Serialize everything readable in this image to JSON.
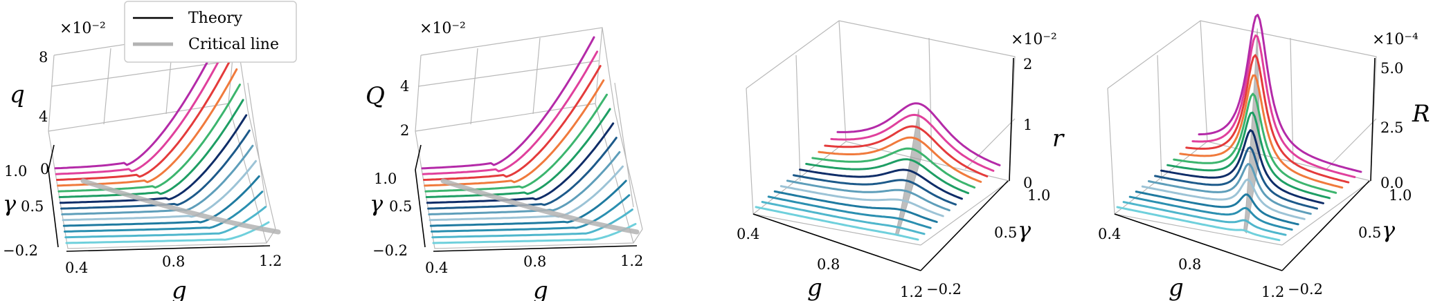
{
  "legend": {
    "entries": [
      {
        "label": "Theory",
        "color": "#000000"
      },
      {
        "label": "Critical line",
        "color": "#b3b3b3"
      }
    ]
  },
  "colors": [
    "#6fd0dc",
    "#4fb6cc",
    "#2b8fb0",
    "#1f7aa0",
    "#9cc3d6",
    "#5e9eba",
    "#1d5a8a",
    "#0f2d68",
    "#1e9e64",
    "#3cb56e",
    "#f07a3c",
    "#e43b3b",
    "#e0409c",
    "#b42aa8"
  ],
  "chart_data": [
    {
      "type": "3d-line",
      "name_axis_z": "q",
      "xlabel": "g",
      "ylabel": "γ",
      "zlabel": "q",
      "xticks": [
        "0.4",
        "0.8",
        "1.2"
      ],
      "yticks": [
        "−0.2",
        "0.5",
        "1.0"
      ],
      "zticks": [
        "0",
        "4",
        "8"
      ],
      "zscale": "×10⁻²",
      "xlim": [
        0.4,
        1.2
      ],
      "ylim": [
        -0.2,
        1.0
      ],
      "zlim": [
        0,
        8
      ],
      "profile": "rise"
    },
    {
      "type": "3d-line",
      "xlabel": "g",
      "ylabel": "γ",
      "zlabel": "Q",
      "xticks": [
        "0.4",
        "0.8",
        "1.2"
      ],
      "yticks": [
        "−0.2",
        "0.5",
        "1.0"
      ],
      "zticks": [
        "2",
        "4"
      ],
      "zscale": "×10⁻²",
      "xlim": [
        0.4,
        1.2
      ],
      "ylim": [
        -0.2,
        1.0
      ],
      "zlim": [
        0,
        5
      ],
      "profile": "rise"
    },
    {
      "type": "3d-line",
      "xlabel": "g",
      "ylabel": "γ",
      "zlabel": "r",
      "xticks": [
        "0.4",
        "0.8",
        "1.2"
      ],
      "yticks": [
        "−0.2",
        "0.5",
        "1.0"
      ],
      "zticks": [
        "0",
        "1",
        "2"
      ],
      "zscale": "×10⁻²",
      "xlim": [
        0.4,
        1.2
      ],
      "ylim": [
        -0.2,
        1.0
      ],
      "zlim": [
        0,
        2
      ],
      "profile": "peak"
    },
    {
      "type": "3d-line",
      "xlabel": "g",
      "ylabel": "γ",
      "zlabel": "R",
      "xticks": [
        "0.4",
        "0.8",
        "1.2"
      ],
      "yticks": [
        "−0.2",
        "0.5",
        "1.0"
      ],
      "zticks": [
        "0.0",
        "2.5",
        "5.0"
      ],
      "zscale": "×10⁻⁴",
      "xlim": [
        0.4,
        1.2
      ],
      "ylim": [
        -0.2,
        1.0
      ],
      "zlim": [
        0,
        5
      ],
      "profile": "sharp-peak"
    }
  ]
}
